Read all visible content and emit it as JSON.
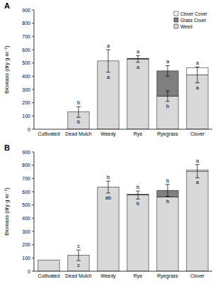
{
  "chart_data": [
    {
      "type": "bar",
      "title": "A",
      "y_label": "Biomass (dry g m⁻²)",
      "stacked": true,
      "legend": "upper right",
      "categories": [
        "Cultivated",
        "Dead Mulch",
        "Weedy",
        "Rye",
        "Ryegrass",
        "Clover"
      ],
      "series": [
        {
          "name": "Weed",
          "color": "#d9d9d9",
          "values": [
            0,
            130,
            515,
            530,
            250,
            410
          ],
          "errors": [
            null,
            40,
            85,
            25,
            40,
            60
          ]
        },
        {
          "name": "Grass Cover",
          "color": "#7f7f7f",
          "values": [
            null,
            null,
            null,
            5,
            190,
            null
          ],
          "errors": [
            null,
            null,
            null,
            null,
            40,
            null
          ]
        },
        {
          "name": "Clover Cover",
          "color": "#ffffff",
          "values": [
            null,
            null,
            null,
            null,
            null,
            55
          ]
        }
      ],
      "total_letters": [
        null,
        "b",
        "a",
        "a",
        "a",
        "a"
      ],
      "weed_letters": [
        null,
        "b",
        "a",
        "a",
        "b",
        "a"
      ],
      "ylim": [
        0,
        900
      ],
      "yticks": [
        0,
        100,
        200,
        300,
        400,
        500,
        600,
        700,
        800,
        900
      ]
    },
    {
      "type": "bar",
      "title": "B",
      "y_label": "Biomass (dry g m⁻²)",
      "stacked": true,
      "categories": [
        "Cultivated",
        "Dead Mulch",
        "Weedy",
        "Rye",
        "Ryegrass",
        "Clover"
      ],
      "series": [
        {
          "name": "Weed",
          "color": "#d9d9d9",
          "values": [
            85,
            120,
            635,
            575,
            560,
            755
          ],
          "errors": [
            null,
            40,
            45,
            30,
            null,
            50
          ]
        },
        {
          "name": "Grass Cover",
          "color": "#7f7f7f",
          "values": [
            null,
            null,
            null,
            5,
            50,
            null
          ],
          "errors": [
            null,
            null,
            null,
            null,
            45,
            null
          ]
        },
        {
          "name": "Clover Cover",
          "color": "#ffffff",
          "values": [
            null,
            null,
            null,
            null,
            null,
            10
          ]
        }
      ],
      "total_letters": [
        null,
        "c",
        "b",
        "b",
        "b",
        "a"
      ],
      "weed_letters": [
        null,
        "c",
        "ab",
        "b",
        "b",
        "a"
      ],
      "ylim": [
        0,
        900
      ],
      "yticks": [
        0,
        100,
        200,
        300,
        400,
        500,
        600,
        700,
        800,
        900
      ]
    }
  ]
}
